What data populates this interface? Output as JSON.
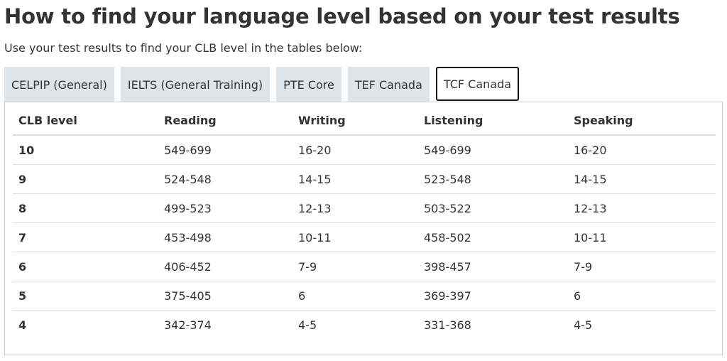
{
  "heading": "How to find your language level based on your test results",
  "intro": "Use your test results to find your CLB level in the tables below:",
  "tabs": [
    {
      "label": "CELPIP (General)",
      "active": false
    },
    {
      "label": "IELTS (General Training)",
      "active": false
    },
    {
      "label": "PTE Core",
      "active": false
    },
    {
      "label": "TEF Canada",
      "active": false
    },
    {
      "label": "TCF Canada",
      "active": true
    }
  ],
  "table": {
    "headers": [
      "CLB level",
      "Reading",
      "Writing",
      "Listening",
      "Speaking"
    ],
    "rows": [
      [
        "10",
        "549-699",
        "16-20",
        "549-699",
        "16-20"
      ],
      [
        "9",
        "524-548",
        "14-15",
        "523-548",
        "14-15"
      ],
      [
        "8",
        "499-523",
        "12-13",
        "503-522",
        "12-13"
      ],
      [
        "7",
        "453-498",
        "10-11",
        "458-502",
        "10-11"
      ],
      [
        "6",
        "406-452",
        "7-9",
        "398-457",
        "7-9"
      ],
      [
        "5",
        "375-405",
        "6",
        "369-397",
        "6"
      ],
      [
        "4",
        "342-374",
        "4-5",
        "331-368",
        "4-5"
      ]
    ]
  },
  "colors": {
    "tab_background": "#e1e4e7",
    "active_tab_border": "#111111",
    "text": "#333333",
    "row_divider": "#dddddd"
  }
}
